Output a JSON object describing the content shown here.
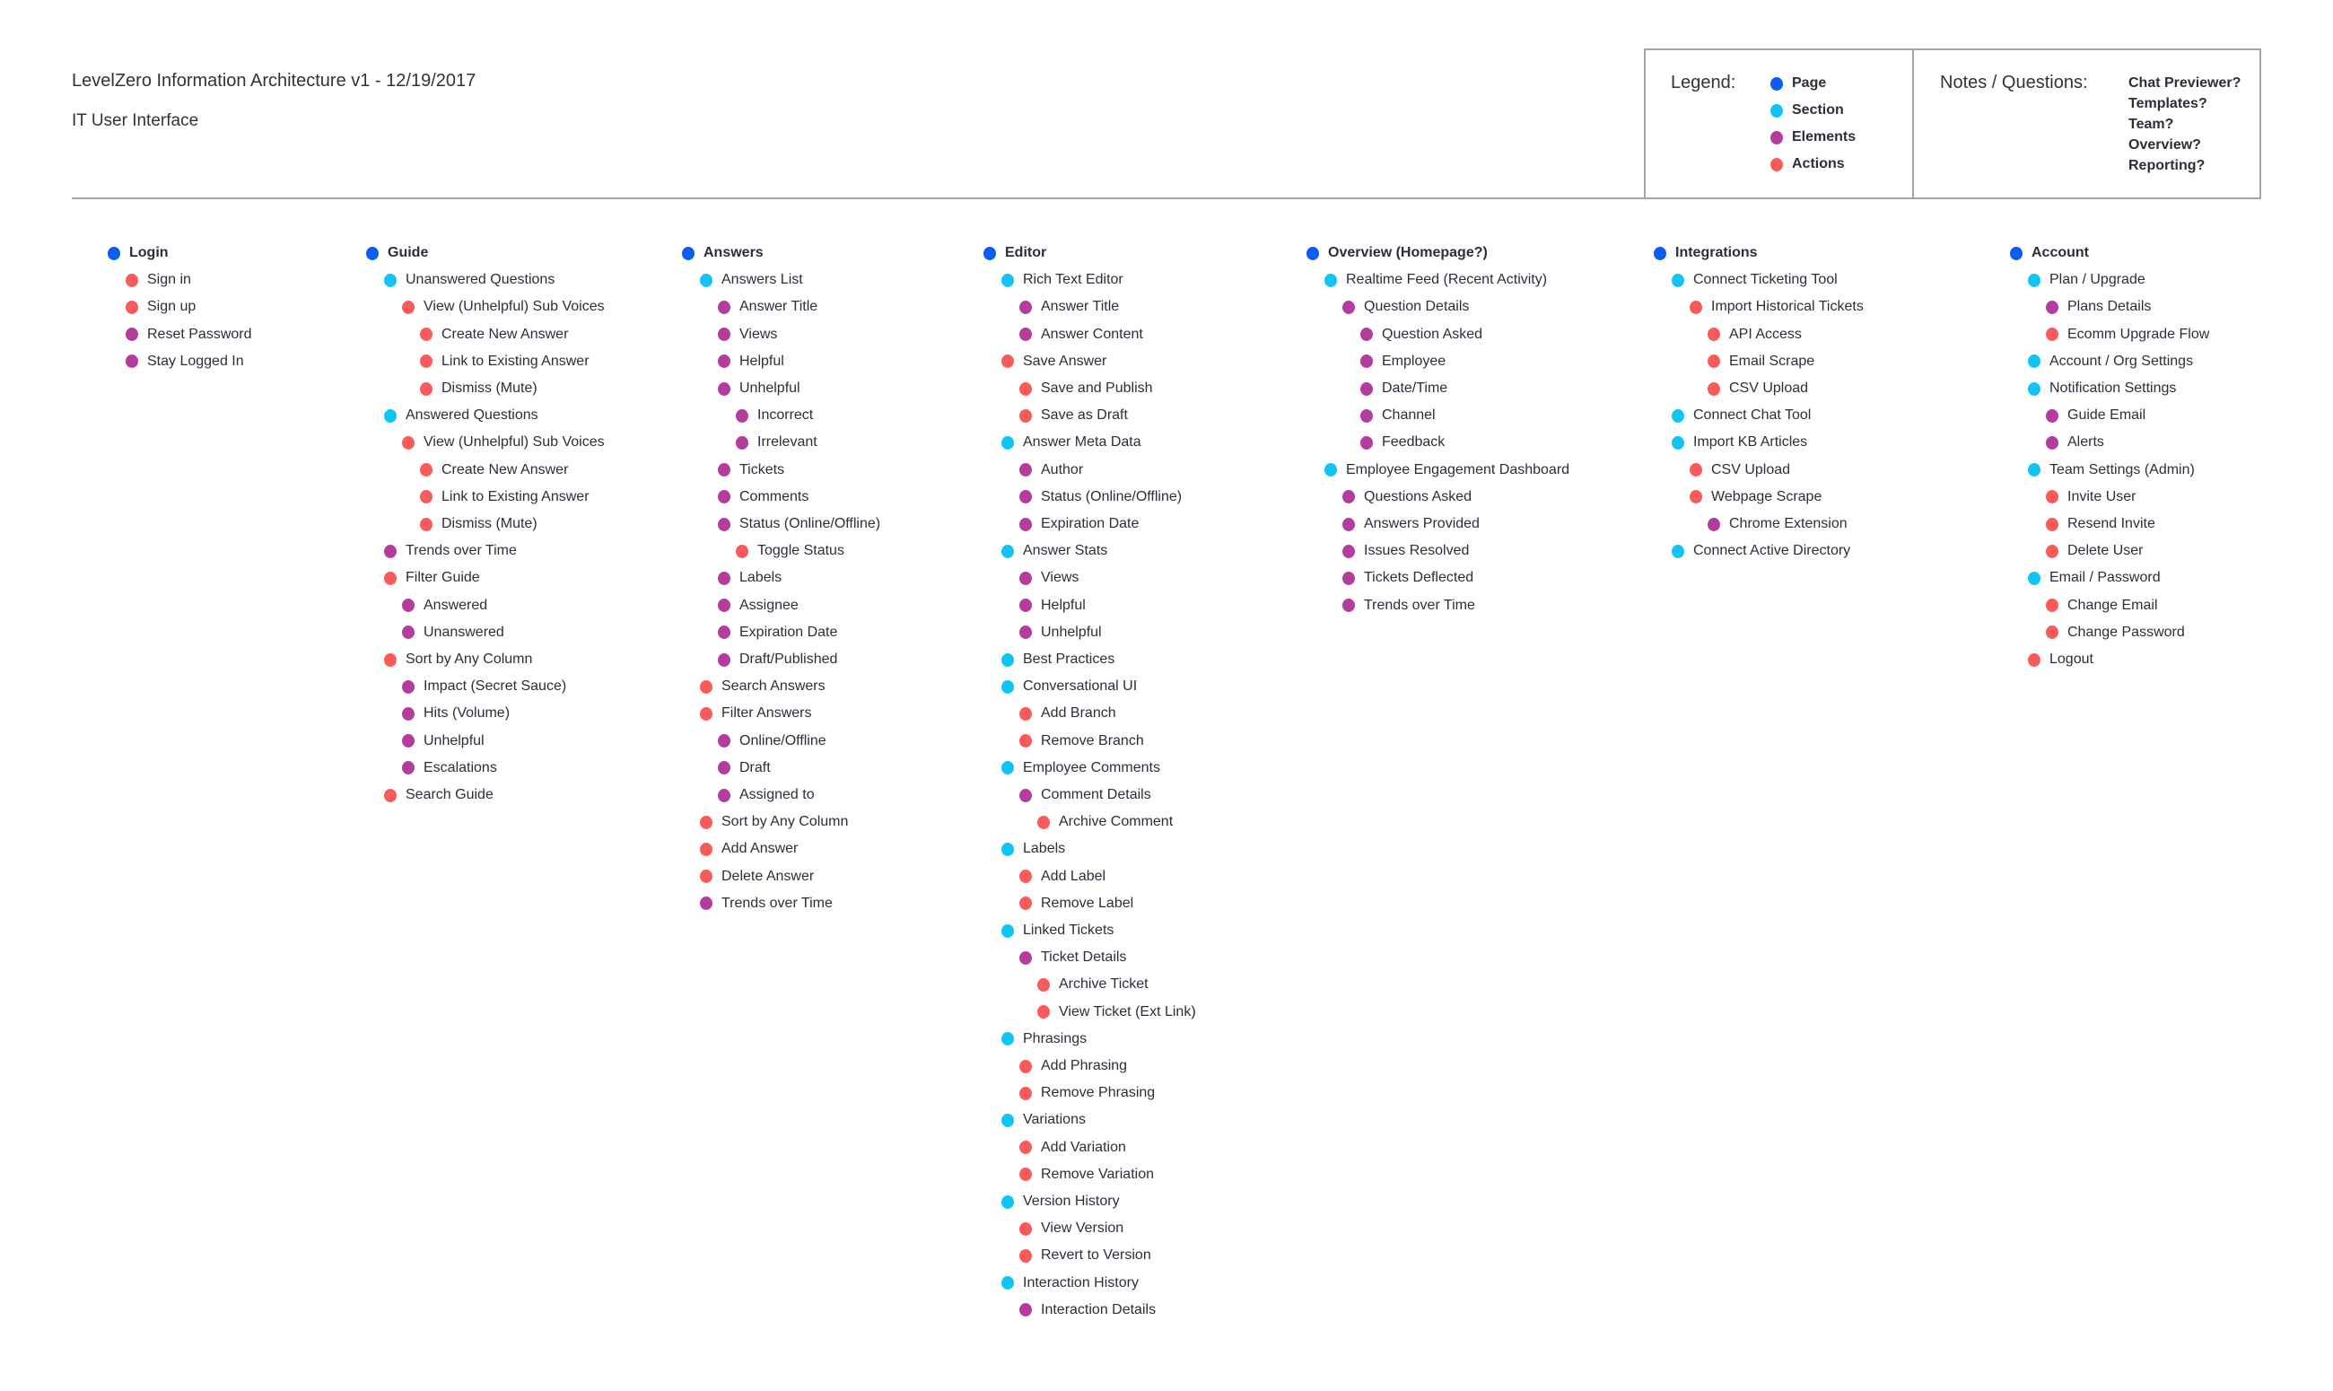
{
  "header": {
    "title": "LevelZero Information Architecture v1 - 12/19/2017",
    "subtitle": "IT User Interface"
  },
  "colors": {
    "page": "#0A5CF5",
    "section": "#10C4F5",
    "element": "#B33C9C",
    "action": "#FA5A5A"
  },
  "legend": {
    "label": "Legend:",
    "items": [
      {
        "type": "page",
        "label": "Page"
      },
      {
        "type": "section",
        "label": "Section"
      },
      {
        "type": "element",
        "label": "Elements"
      },
      {
        "type": "action",
        "label": "Actions"
      }
    ]
  },
  "notes": {
    "label": "Notes / Questions:",
    "items": [
      "Chat Previewer?",
      "Templates?",
      "Team?",
      "Overview?",
      "Reporting?"
    ]
  },
  "columns": [
    {
      "items": [
        {
          "label": "Login",
          "type": "page",
          "level": 0
        },
        {
          "label": "Sign in",
          "type": "action",
          "level": 1
        },
        {
          "label": "Sign up",
          "type": "action",
          "level": 1
        },
        {
          "label": "Reset Password",
          "type": "element",
          "level": 1
        },
        {
          "label": "Stay Logged In",
          "type": "element",
          "level": 1
        }
      ]
    },
    {
      "items": [
        {
          "label": "Guide",
          "type": "page",
          "level": 0
        },
        {
          "label": "Unanswered Questions",
          "type": "section",
          "level": 1
        },
        {
          "label": "View (Unhelpful) Sub Voices",
          "type": "action",
          "level": 2
        },
        {
          "label": "Create New Answer",
          "type": "action",
          "level": 3
        },
        {
          "label": "Link to Existing Answer",
          "type": "action",
          "level": 3
        },
        {
          "label": "Dismiss (Mute)",
          "type": "action",
          "level": 3
        },
        {
          "label": "Answered Questions",
          "type": "section",
          "level": 1
        },
        {
          "label": "View (Unhelpful) Sub Voices",
          "type": "action",
          "level": 2
        },
        {
          "label": "Create New Answer",
          "type": "action",
          "level": 3
        },
        {
          "label": "Link to Existing Answer",
          "type": "action",
          "level": 3
        },
        {
          "label": "Dismiss (Mute)",
          "type": "action",
          "level": 3
        },
        {
          "label": "Trends over Time",
          "type": "element",
          "level": 1
        },
        {
          "label": "Filter Guide",
          "type": "action",
          "level": 1
        },
        {
          "label": "Answered",
          "type": "element",
          "level": 2
        },
        {
          "label": "Unanswered",
          "type": "element",
          "level": 2
        },
        {
          "label": "Sort by Any Column",
          "type": "action",
          "level": 1
        },
        {
          "label": "Impact (Secret Sauce)",
          "type": "element",
          "level": 2
        },
        {
          "label": "Hits (Volume)",
          "type": "element",
          "level": 2
        },
        {
          "label": "Unhelpful",
          "type": "element",
          "level": 2
        },
        {
          "label": "Escalations",
          "type": "element",
          "level": 2
        },
        {
          "label": "Search Guide",
          "type": "action",
          "level": 1
        }
      ]
    },
    {
      "items": [
        {
          "label": "Answers",
          "type": "page",
          "level": 0
        },
        {
          "label": "Answers List",
          "type": "section",
          "level": 1
        },
        {
          "label": "Answer Title",
          "type": "element",
          "level": 2
        },
        {
          "label": "Views",
          "type": "element",
          "level": 2
        },
        {
          "label": "Helpful",
          "type": "element",
          "level": 2
        },
        {
          "label": "Unhelpful",
          "type": "element",
          "level": 2
        },
        {
          "label": "Incorrect",
          "type": "element",
          "level": 3
        },
        {
          "label": "Irrelevant",
          "type": "element",
          "level": 3
        },
        {
          "label": "Tickets",
          "type": "element",
          "level": 2
        },
        {
          "label": "Comments",
          "type": "element",
          "level": 2
        },
        {
          "label": "Status (Online/Offline)",
          "type": "element",
          "level": 2
        },
        {
          "label": "Toggle Status",
          "type": "action",
          "level": 3
        },
        {
          "label": "Labels",
          "type": "element",
          "level": 2
        },
        {
          "label": "Assignee",
          "type": "element",
          "level": 2
        },
        {
          "label": "Expiration Date",
          "type": "element",
          "level": 2
        },
        {
          "label": "Draft/Published",
          "type": "element",
          "level": 2
        },
        {
          "label": "Search Answers",
          "type": "action",
          "level": 1
        },
        {
          "label": "Filter Answers",
          "type": "action",
          "level": 1
        },
        {
          "label": "Online/Offline",
          "type": "element",
          "level": 2
        },
        {
          "label": "Draft",
          "type": "element",
          "level": 2
        },
        {
          "label": "Assigned to",
          "type": "element",
          "level": 2
        },
        {
          "label": "Sort by Any Column",
          "type": "action",
          "level": 1
        },
        {
          "label": "Add Answer",
          "type": "action",
          "level": 1
        },
        {
          "label": "Delete Answer",
          "type": "action",
          "level": 1
        },
        {
          "label": "Trends over Time",
          "type": "element",
          "level": 1
        }
      ]
    },
    {
      "items": [
        {
          "label": "Editor",
          "type": "page",
          "level": 0
        },
        {
          "label": "Rich Text Editor",
          "type": "section",
          "level": 1
        },
        {
          "label": "Answer Title",
          "type": "element",
          "level": 2
        },
        {
          "label": "Answer Content",
          "type": "element",
          "level": 2
        },
        {
          "label": "Save Answer",
          "type": "action",
          "level": 1
        },
        {
          "label": "Save and Publish",
          "type": "action",
          "level": 2
        },
        {
          "label": "Save as Draft",
          "type": "action",
          "level": 2
        },
        {
          "label": "Answer Meta Data",
          "type": "section",
          "level": 1
        },
        {
          "label": "Author",
          "type": "element",
          "level": 2
        },
        {
          "label": "Status (Online/Offline)",
          "type": "element",
          "level": 2
        },
        {
          "label": "Expiration Date",
          "type": "element",
          "level": 2
        },
        {
          "label": "Answer Stats",
          "type": "section",
          "level": 1
        },
        {
          "label": "Views",
          "type": "element",
          "level": 2
        },
        {
          "label": "Helpful",
          "type": "element",
          "level": 2
        },
        {
          "label": "Unhelpful",
          "type": "element",
          "level": 2
        },
        {
          "label": "Best Practices",
          "type": "section",
          "level": 1
        },
        {
          "label": "Conversational UI",
          "type": "section",
          "level": 1
        },
        {
          "label": "Add Branch",
          "type": "action",
          "level": 2
        },
        {
          "label": "Remove Branch",
          "type": "action",
          "level": 2
        },
        {
          "label": "Employee Comments",
          "type": "section",
          "level": 1
        },
        {
          "label": "Comment Details",
          "type": "element",
          "level": 2
        },
        {
          "label": "Archive Comment",
          "type": "action",
          "level": 3
        },
        {
          "label": "Labels",
          "type": "section",
          "level": 1
        },
        {
          "label": "Add Label",
          "type": "action",
          "level": 2
        },
        {
          "label": "Remove Label",
          "type": "action",
          "level": 2
        },
        {
          "label": "Linked Tickets",
          "type": "section",
          "level": 1
        },
        {
          "label": "Ticket Details",
          "type": "element",
          "level": 2
        },
        {
          "label": "Archive Ticket",
          "type": "action",
          "level": 3
        },
        {
          "label": "View Ticket (Ext Link)",
          "type": "action",
          "level": 3
        },
        {
          "label": "Phrasings",
          "type": "section",
          "level": 1
        },
        {
          "label": "Add Phrasing",
          "type": "action",
          "level": 2
        },
        {
          "label": "Remove Phrasing",
          "type": "action",
          "level": 2
        },
        {
          "label": "Variations",
          "type": "section",
          "level": 1
        },
        {
          "label": "Add Variation",
          "type": "action",
          "level": 2
        },
        {
          "label": "Remove Variation",
          "type": "action",
          "level": 2
        },
        {
          "label": "Version History",
          "type": "section",
          "level": 1
        },
        {
          "label": "View Version",
          "type": "action",
          "level": 2
        },
        {
          "label": "Revert to Version",
          "type": "action",
          "level": 2
        },
        {
          "label": "Interaction History",
          "type": "section",
          "level": 1
        },
        {
          "label": "Interaction Details",
          "type": "element",
          "level": 2
        }
      ]
    },
    {
      "items": [
        {
          "label": "Overview (Homepage?)",
          "type": "page",
          "level": 0
        },
        {
          "label": "Realtime Feed (Recent Activity)",
          "type": "section",
          "level": 1
        },
        {
          "label": "Question Details",
          "type": "element",
          "level": 2
        },
        {
          "label": "Question Asked",
          "type": "element",
          "level": 3
        },
        {
          "label": "Employee",
          "type": "element",
          "level": 3
        },
        {
          "label": "Date/Time",
          "type": "element",
          "level": 3
        },
        {
          "label": "Channel",
          "type": "element",
          "level": 3
        },
        {
          "label": "Feedback",
          "type": "element",
          "level": 3
        },
        {
          "label": "Employee Engagement Dashboard",
          "type": "section",
          "level": 1
        },
        {
          "label": "Questions Asked",
          "type": "element",
          "level": 2
        },
        {
          "label": "Answers Provided",
          "type": "element",
          "level": 2
        },
        {
          "label": "Issues Resolved",
          "type": "element",
          "level": 2
        },
        {
          "label": "Tickets Deflected",
          "type": "element",
          "level": 2
        },
        {
          "label": "Trends over Time",
          "type": "element",
          "level": 2
        }
      ]
    },
    {
      "items": [
        {
          "label": "Integrations",
          "type": "page",
          "level": 0
        },
        {
          "label": "Connect Ticketing Tool",
          "type": "section",
          "level": 1
        },
        {
          "label": "Import Historical Tickets",
          "type": "action",
          "level": 2
        },
        {
          "label": "API Access",
          "type": "action",
          "level": 3
        },
        {
          "label": "Email Scrape",
          "type": "action",
          "level": 3
        },
        {
          "label": "CSV Upload",
          "type": "action",
          "level": 3
        },
        {
          "label": "Connect Chat Tool",
          "type": "section",
          "level": 1
        },
        {
          "label": "Import KB Articles",
          "type": "section",
          "level": 1
        },
        {
          "label": "CSV Upload",
          "type": "action",
          "level": 2
        },
        {
          "label": "Webpage Scrape",
          "type": "action",
          "level": 2
        },
        {
          "label": "Chrome Extension",
          "type": "element",
          "level": 3
        },
        {
          "label": "Connect Active Directory",
          "type": "section",
          "level": 1
        }
      ]
    },
    {
      "items": [
        {
          "label": "Account",
          "type": "page",
          "level": 0
        },
        {
          "label": "Plan / Upgrade",
          "type": "section",
          "level": 1
        },
        {
          "label": "Plans Details",
          "type": "element",
          "level": 2
        },
        {
          "label": "Ecomm Upgrade Flow",
          "type": "action",
          "level": 2
        },
        {
          "label": "Account / Org Settings",
          "type": "section",
          "level": 1
        },
        {
          "label": "Notification Settings",
          "type": "section",
          "level": 1
        },
        {
          "label": "Guide Email",
          "type": "element",
          "level": 2
        },
        {
          "label": "Alerts",
          "type": "element",
          "level": 2
        },
        {
          "label": "Team Settings (Admin)",
          "type": "section",
          "level": 1
        },
        {
          "label": "Invite User",
          "type": "action",
          "level": 2
        },
        {
          "label": "Resend Invite",
          "type": "action",
          "level": 2
        },
        {
          "label": "Delete User",
          "type": "action",
          "level": 2
        },
        {
          "label": "Email / Password",
          "type": "section",
          "level": 1
        },
        {
          "label": "Change Email",
          "type": "action",
          "level": 2
        },
        {
          "label": "Change Password",
          "type": "action",
          "level": 2
        },
        {
          "label": "Logout",
          "type": "action",
          "level": 1
        }
      ]
    }
  ]
}
